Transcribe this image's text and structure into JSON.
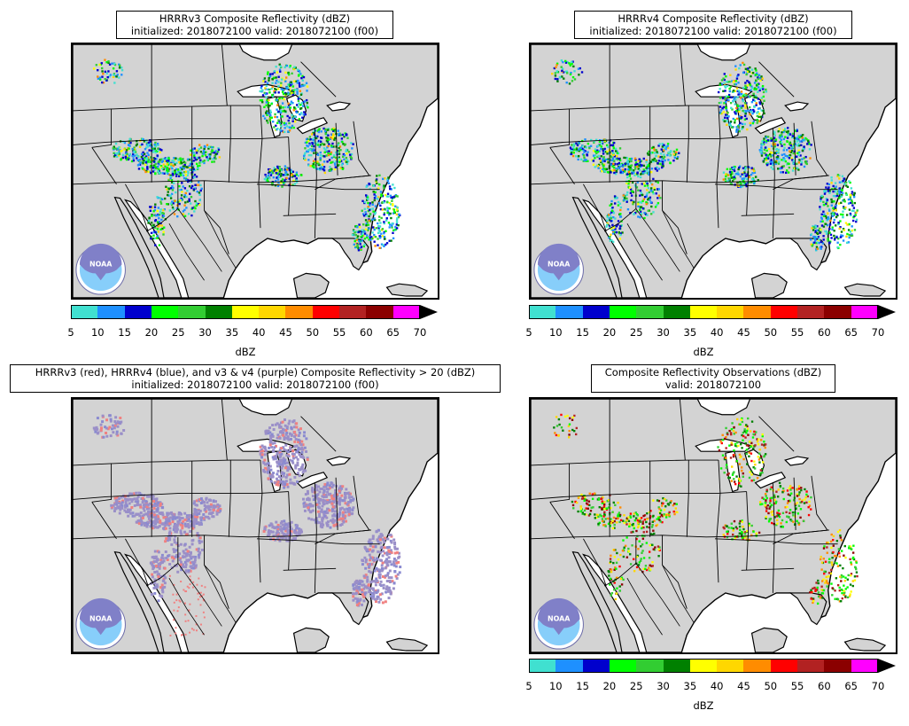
{
  "panels": [
    {
      "id": "p1",
      "title_line1": "HRRRv3 Composite Reflectivity (dBZ)",
      "title_line2": "initialized: 2018072100 valid: 2018072100 (f00)",
      "field": "reflectivity",
      "has_colorbar": true
    },
    {
      "id": "p2",
      "title_line1": "HRRRv4 Composite Reflectivity (dBZ)",
      "title_line2": "initialized: 2018072100 valid: 2018072100 (f00)",
      "field": "reflectivity",
      "has_colorbar": true
    },
    {
      "id": "p3",
      "title_line1": "HRRRv3 (red), HRRRv4 (blue), and v3 & v4 (purple) Composite Reflectivity > 20 (dBZ)",
      "title_line2": "initialized: 2018072100 valid: 2018072100 (f00)",
      "field": "overlap",
      "has_colorbar": false
    },
    {
      "id": "p4",
      "title_line1": "Composite Reflectivity Observations (dBZ)",
      "title_line2": "valid: 2018072100",
      "field": "observations",
      "has_colorbar": true
    }
  ],
  "colorbar": {
    "unit_label": "dBZ",
    "ticks": [
      "5",
      "10",
      "15",
      "20",
      "25",
      "30",
      "35",
      "40",
      "45",
      "50",
      "55",
      "60",
      "65",
      "70"
    ],
    "colors": [
      "#40e0d0",
      "#1e90ff",
      "#0000cd",
      "#00ff00",
      "#32cd32",
      "#008000",
      "#ffff00",
      "#ffd700",
      "#ff8c00",
      "#ff0000",
      "#b22222",
      "#8b0000",
      "#ff00ff"
    ]
  },
  "map_colors": {
    "land": "#d3d3d3",
    "water": "#ffffff",
    "border": "#000000",
    "v3_only": "#f08080",
    "v4_only": "#8a8ad0",
    "both": "#9a8fc8"
  },
  "logo": {
    "text": "NOAA",
    "icon": "noaa-logo-icon"
  }
}
